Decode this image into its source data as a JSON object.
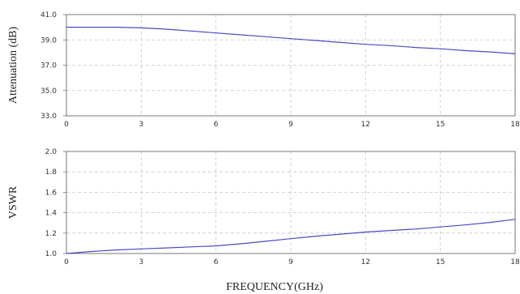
{
  "chart_data": [
    {
      "type": "line",
      "ylabel": "Attenuation (dB)",
      "xlabel": "",
      "xlim": [
        0,
        18
      ],
      "ylim": [
        33.0,
        41.0
      ],
      "x_ticks": [
        "0",
        "3",
        "6",
        "9",
        "12",
        "15",
        "18"
      ],
      "y_ticks": [
        "33.0",
        "35.0",
        "37.0",
        "39.0",
        "41.0"
      ],
      "grid": true,
      "series": [
        {
          "color": "#4a4ac8",
          "x": [
            0,
            1,
            2,
            3,
            4,
            5,
            6,
            7,
            8,
            9,
            10,
            11,
            12,
            13,
            14,
            15,
            16,
            17,
            18
          ],
          "y": [
            40.0,
            40.0,
            40.0,
            39.95,
            39.85,
            39.7,
            39.55,
            39.4,
            39.25,
            39.1,
            38.95,
            38.8,
            38.65,
            38.55,
            38.4,
            38.3,
            38.15,
            38.05,
            37.9
          ]
        }
      ]
    },
    {
      "type": "line",
      "ylabel": "VSWR",
      "xlabel": "FREQUENCY(GHz)",
      "xlim": [
        0,
        18
      ],
      "ylim": [
        1.0,
        2.0
      ],
      "x_ticks": [
        "0",
        "3",
        "6",
        "9",
        "12",
        "15",
        "18"
      ],
      "y_ticks": [
        "1.0",
        "1.2",
        "1.4",
        "1.6",
        "1.8",
        "2.0"
      ],
      "grid": true,
      "series": [
        {
          "color": "#4a4ac8",
          "x": [
            0,
            1,
            2,
            3,
            4,
            5,
            6,
            7,
            8,
            9,
            10,
            11,
            12,
            13,
            14,
            15,
            16,
            17,
            18
          ],
          "y": [
            1.0,
            1.02,
            1.035,
            1.045,
            1.055,
            1.065,
            1.075,
            1.095,
            1.12,
            1.145,
            1.17,
            1.19,
            1.21,
            1.225,
            1.24,
            1.26,
            1.28,
            1.305,
            1.335
          ]
        }
      ]
    }
  ]
}
